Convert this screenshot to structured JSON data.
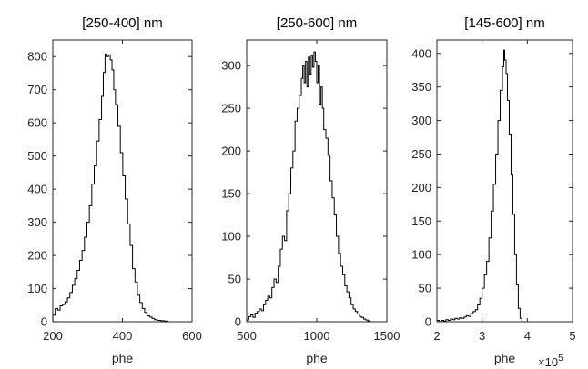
{
  "chart_data": [
    {
      "type": "histogram",
      "title": "[250-400] nm",
      "xlabel": "phe",
      "xlim": [
        200,
        600
      ],
      "ylim": [
        0,
        850
      ],
      "xticks": [
        200,
        400,
        600
      ],
      "yticks": [
        0,
        100,
        200,
        300,
        400,
        500,
        600,
        700,
        800
      ],
      "points": [
        [
          200,
          0
        ],
        [
          200,
          20
        ],
        [
          207,
          20
        ],
        [
          207,
          40
        ],
        [
          214,
          40
        ],
        [
          214,
          35
        ],
        [
          221,
          35
        ],
        [
          221,
          48
        ],
        [
          228,
          48
        ],
        [
          228,
          52
        ],
        [
          235,
          52
        ],
        [
          235,
          60
        ],
        [
          242,
          60
        ],
        [
          242,
          72
        ],
        [
          249,
          72
        ],
        [
          249,
          88
        ],
        [
          256,
          88
        ],
        [
          256,
          110
        ],
        [
          263,
          110
        ],
        [
          263,
          130
        ],
        [
          270,
          130
        ],
        [
          270,
          155
        ],
        [
          277,
          155
        ],
        [
          277,
          185
        ],
        [
          284,
          185
        ],
        [
          284,
          215
        ],
        [
          291,
          215
        ],
        [
          291,
          255
        ],
        [
          298,
          255
        ],
        [
          298,
          300
        ],
        [
          305,
          300
        ],
        [
          305,
          350
        ],
        [
          312,
          350
        ],
        [
          312,
          415
        ],
        [
          319,
          415
        ],
        [
          319,
          470
        ],
        [
          326,
          470
        ],
        [
          326,
          545
        ],
        [
          333,
          545
        ],
        [
          333,
          610
        ],
        [
          340,
          610
        ],
        [
          340,
          680
        ],
        [
          345,
          680
        ],
        [
          345,
          752
        ],
        [
          350,
          752
        ],
        [
          350,
          808
        ],
        [
          355,
          808
        ],
        [
          355,
          800
        ],
        [
          360,
          800
        ],
        [
          360,
          805
        ],
        [
          365,
          805
        ],
        [
          365,
          790
        ],
        [
          370,
          790
        ],
        [
          370,
          760
        ],
        [
          375,
          760
        ],
        [
          375,
          700
        ],
        [
          380,
          700
        ],
        [
          380,
          655
        ],
        [
          387,
          655
        ],
        [
          387,
          590
        ],
        [
          394,
          590
        ],
        [
          394,
          510
        ],
        [
          401,
          510
        ],
        [
          401,
          440
        ],
        [
          408,
          440
        ],
        [
          408,
          370
        ],
        [
          415,
          370
        ],
        [
          415,
          295
        ],
        [
          422,
          295
        ],
        [
          422,
          230
        ],
        [
          429,
          230
        ],
        [
          429,
          160
        ],
        [
          436,
          160
        ],
        [
          436,
          120
        ],
        [
          443,
          120
        ],
        [
          443,
          80
        ],
        [
          450,
          80
        ],
        [
          450,
          58
        ],
        [
          457,
          58
        ],
        [
          457,
          40
        ],
        [
          464,
          40
        ],
        [
          464,
          28
        ],
        [
          471,
          28
        ],
        [
          471,
          18
        ],
        [
          478,
          18
        ],
        [
          478,
          14
        ],
        [
          485,
          14
        ],
        [
          485,
          10
        ],
        [
          492,
          10
        ],
        [
          492,
          6
        ],
        [
          500,
          6
        ],
        [
          500,
          4
        ],
        [
          510,
          4
        ],
        [
          510,
          3
        ],
        [
          520,
          3
        ],
        [
          520,
          2
        ],
        [
          530,
          2
        ],
        [
          530,
          0
        ]
      ]
    },
    {
      "type": "histogram",
      "title": "[250-600] nm",
      "xlabel": "phe",
      "xlim": [
        500,
        1500
      ],
      "ylim": [
        0,
        330
      ],
      "xticks": [
        500,
        1000,
        1500
      ],
      "yticks": [
        0,
        50,
        100,
        150,
        200,
        250,
        300
      ],
      "points": [
        [
          500,
          2
        ],
        [
          515,
          2
        ],
        [
          515,
          6
        ],
        [
          530,
          6
        ],
        [
          530,
          8
        ],
        [
          545,
          8
        ],
        [
          545,
          5
        ],
        [
          560,
          5
        ],
        [
          560,
          10
        ],
        [
          575,
          10
        ],
        [
          575,
          12
        ],
        [
          590,
          12
        ],
        [
          590,
          15
        ],
        [
          605,
          15
        ],
        [
          605,
          13
        ],
        [
          620,
          13
        ],
        [
          620,
          20
        ],
        [
          635,
          20
        ],
        [
          635,
          25
        ],
        [
          650,
          25
        ],
        [
          650,
          30
        ],
        [
          665,
          30
        ],
        [
          665,
          28
        ],
        [
          680,
          28
        ],
        [
          680,
          40
        ],
        [
          695,
          40
        ],
        [
          695,
          50
        ],
        [
          710,
          50
        ],
        [
          710,
          46
        ],
        [
          725,
          46
        ],
        [
          725,
          65
        ],
        [
          740,
          65
        ],
        [
          740,
          85
        ],
        [
          755,
          85
        ],
        [
          755,
          100
        ],
        [
          770,
          100
        ],
        [
          770,
          95
        ],
        [
          785,
          95
        ],
        [
          785,
          130
        ],
        [
          800,
          130
        ],
        [
          800,
          150
        ],
        [
          815,
          150
        ],
        [
          815,
          180
        ],
        [
          830,
          180
        ],
        [
          830,
          200
        ],
        [
          845,
          200
        ],
        [
          845,
          235
        ],
        [
          860,
          235
        ],
        [
          860,
          250
        ],
        [
          875,
          250
        ],
        [
          875,
          265
        ],
        [
          890,
          265
        ],
        [
          890,
          285
        ],
        [
          900,
          285
        ],
        [
          900,
          300
        ],
        [
          910,
          300
        ],
        [
          910,
          280
        ],
        [
          920,
          280
        ],
        [
          920,
          305
        ],
        [
          930,
          305
        ],
        [
          930,
          275
        ],
        [
          940,
          275
        ],
        [
          940,
          310
        ],
        [
          950,
          310
        ],
        [
          950,
          290
        ],
        [
          960,
          290
        ],
        [
          960,
          312
        ],
        [
          970,
          312
        ],
        [
          970,
          298
        ],
        [
          980,
          298
        ],
        [
          980,
          316
        ],
        [
          990,
          316
        ],
        [
          990,
          305
        ],
        [
          1000,
          305
        ],
        [
          1000,
          280
        ],
        [
          1010,
          280
        ],
        [
          1010,
          300
        ],
        [
          1020,
          300
        ],
        [
          1020,
          255
        ],
        [
          1030,
          255
        ],
        [
          1030,
          275
        ],
        [
          1040,
          275
        ],
        [
          1040,
          250
        ],
        [
          1050,
          250
        ],
        [
          1050,
          225
        ],
        [
          1065,
          225
        ],
        [
          1065,
          215
        ],
        [
          1080,
          215
        ],
        [
          1080,
          195
        ],
        [
          1095,
          195
        ],
        [
          1095,
          165
        ],
        [
          1110,
          165
        ],
        [
          1110,
          145
        ],
        [
          1125,
          145
        ],
        [
          1125,
          125
        ],
        [
          1140,
          125
        ],
        [
          1140,
          100
        ],
        [
          1155,
          100
        ],
        [
          1155,
          80
        ],
        [
          1170,
          80
        ],
        [
          1170,
          65
        ],
        [
          1185,
          65
        ],
        [
          1185,
          55
        ],
        [
          1200,
          55
        ],
        [
          1200,
          42
        ],
        [
          1215,
          42
        ],
        [
          1215,
          35
        ],
        [
          1230,
          35
        ],
        [
          1230,
          28
        ],
        [
          1245,
          28
        ],
        [
          1245,
          20
        ],
        [
          1260,
          20
        ],
        [
          1260,
          15
        ],
        [
          1275,
          15
        ],
        [
          1275,
          12
        ],
        [
          1290,
          12
        ],
        [
          1290,
          9
        ],
        [
          1305,
          9
        ],
        [
          1305,
          6
        ],
        [
          1320,
          6
        ],
        [
          1320,
          5
        ],
        [
          1335,
          5
        ],
        [
          1335,
          3
        ],
        [
          1350,
          3
        ],
        [
          1350,
          2
        ],
        [
          1365,
          2
        ],
        [
          1365,
          1
        ],
        [
          1380,
          1
        ],
        [
          1380,
          0
        ]
      ]
    },
    {
      "type": "histogram",
      "title": "[145-600] nm",
      "xlabel": "phe",
      "x_multiplier": "10^5",
      "xlim": [
        2,
        5
      ],
      "ylim": [
        0,
        420
      ],
      "xticks": [
        2,
        3,
        4,
        5
      ],
      "yticks": [
        0,
        50,
        100,
        150,
        200,
        250,
        300,
        350,
        400
      ],
      "points": [
        [
          2.0,
          2
        ],
        [
          2.05,
          2
        ],
        [
          2.05,
          0
        ],
        [
          2.1,
          0
        ],
        [
          2.1,
          2
        ],
        [
          2.15,
          2
        ],
        [
          2.15,
          1
        ],
        [
          2.2,
          1
        ],
        [
          2.2,
          3
        ],
        [
          2.25,
          3
        ],
        [
          2.25,
          2
        ],
        [
          2.3,
          2
        ],
        [
          2.3,
          4
        ],
        [
          2.35,
          4
        ],
        [
          2.35,
          3
        ],
        [
          2.4,
          3
        ],
        [
          2.4,
          5
        ],
        [
          2.45,
          5
        ],
        [
          2.45,
          4
        ],
        [
          2.5,
          4
        ],
        [
          2.5,
          6
        ],
        [
          2.55,
          6
        ],
        [
          2.55,
          5
        ],
        [
          2.6,
          5
        ],
        [
          2.6,
          7
        ],
        [
          2.65,
          7
        ],
        [
          2.65,
          9
        ],
        [
          2.7,
          9
        ],
        [
          2.7,
          8
        ],
        [
          2.75,
          8
        ],
        [
          2.75,
          12
        ],
        [
          2.8,
          12
        ],
        [
          2.8,
          15
        ],
        [
          2.85,
          15
        ],
        [
          2.85,
          18
        ],
        [
          2.9,
          18
        ],
        [
          2.9,
          25
        ],
        [
          2.95,
          25
        ],
        [
          2.95,
          35
        ],
        [
          3.0,
          35
        ],
        [
          3.0,
          50
        ],
        [
          3.05,
          50
        ],
        [
          3.05,
          70
        ],
        [
          3.1,
          70
        ],
        [
          3.1,
          90
        ],
        [
          3.15,
          90
        ],
        [
          3.15,
          125
        ],
        [
          3.2,
          125
        ],
        [
          3.2,
          165
        ],
        [
          3.25,
          165
        ],
        [
          3.25,
          205
        ],
        [
          3.3,
          205
        ],
        [
          3.3,
          250
        ],
        [
          3.35,
          250
        ],
        [
          3.35,
          300
        ],
        [
          3.4,
          300
        ],
        [
          3.4,
          345
        ],
        [
          3.45,
          345
        ],
        [
          3.45,
          380
        ],
        [
          3.48,
          380
        ],
        [
          3.48,
          405
        ],
        [
          3.5,
          405
        ],
        [
          3.5,
          390
        ],
        [
          3.53,
          390
        ],
        [
          3.53,
          370
        ],
        [
          3.56,
          370
        ],
        [
          3.56,
          330
        ],
        [
          3.6,
          330
        ],
        [
          3.6,
          280
        ],
        [
          3.64,
          280
        ],
        [
          3.64,
          220
        ],
        [
          3.68,
          220
        ],
        [
          3.68,
          160
        ],
        [
          3.72,
          160
        ],
        [
          3.72,
          100
        ],
        [
          3.76,
          100
        ],
        [
          3.76,
          55
        ],
        [
          3.8,
          55
        ],
        [
          3.8,
          20
        ],
        [
          3.84,
          20
        ],
        [
          3.84,
          5
        ],
        [
          3.88,
          5
        ],
        [
          3.88,
          0
        ]
      ]
    }
  ]
}
